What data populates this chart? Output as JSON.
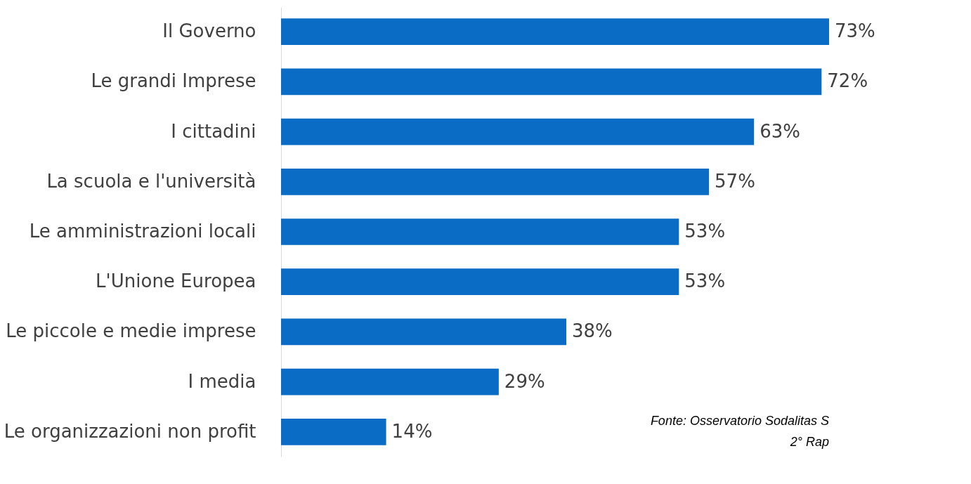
{
  "chart_data": {
    "type": "bar",
    "orientation": "horizontal",
    "categories": [
      "Il Governo",
      "Le grandi Imprese",
      "I cittadini",
      "La scuola e l'università",
      "Le amministrazioni locali",
      "L'Unione Europea",
      "Le piccole e medie imprese",
      "I media",
      "Le organizzazioni non profit"
    ],
    "values": [
      73,
      72,
      63,
      57,
      53,
      53,
      38,
      29,
      14
    ],
    "value_labels": [
      "73%",
      "72%",
      "63%",
      "57%",
      "53%",
      "53%",
      "38%",
      "29%",
      "14%"
    ],
    "color": "#0a6cc4",
    "tick_labels": "y",
    "grid": false,
    "annotations": [
      "Fonte: Osservatorio Sodalitas S",
      "2° Rap"
    ]
  }
}
